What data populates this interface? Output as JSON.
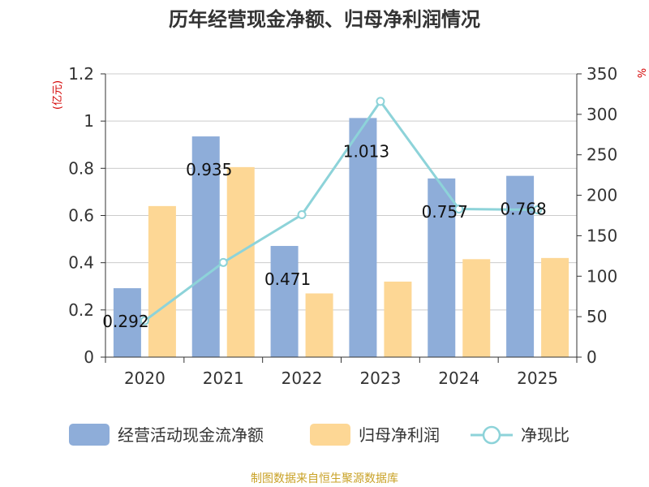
{
  "chart_data": {
    "type": "bar",
    "title": "历年经营现金净额、归母净利润情况",
    "categories": [
      "2020",
      "2021",
      "2022",
      "2023",
      "2024",
      "2025"
    ],
    "y_left": {
      "unit": "(亿元)",
      "ylim": [
        0,
        1.2
      ],
      "ticks": [
        "0",
        "0.2",
        "0.4",
        "0.6",
        "0.8",
        "1",
        "1.2"
      ]
    },
    "y_right": {
      "unit": "%",
      "ylim": [
        0,
        350
      ],
      "ticks": [
        "0",
        "50",
        "100",
        "150",
        "200",
        "250",
        "300",
        "350"
      ]
    },
    "series": [
      {
        "name": "经营活动现金流净额",
        "type": "bar",
        "axis": "left",
        "color": "#8eadd9",
        "values": [
          0.292,
          0.935,
          0.471,
          1.013,
          0.757,
          0.768
        ],
        "labels": [
          "0.292",
          "0.935",
          "0.471",
          "1.013",
          "0.757",
          "0.768"
        ]
      },
      {
        "name": "归母净利润",
        "type": "bar",
        "axis": "left",
        "color": "#fdd795",
        "values": [
          0.64,
          0.805,
          0.27,
          0.32,
          0.415,
          0.42
        ]
      },
      {
        "name": "净现比",
        "type": "line",
        "axis": "right",
        "color": "#8dd3d9",
        "values": [
          45,
          117,
          176,
          316,
          183,
          182
        ]
      }
    ],
    "grid": true,
    "legend_position": "bottom"
  },
  "footer": {
    "source": "制图数据来自恒生聚源数据库"
  }
}
